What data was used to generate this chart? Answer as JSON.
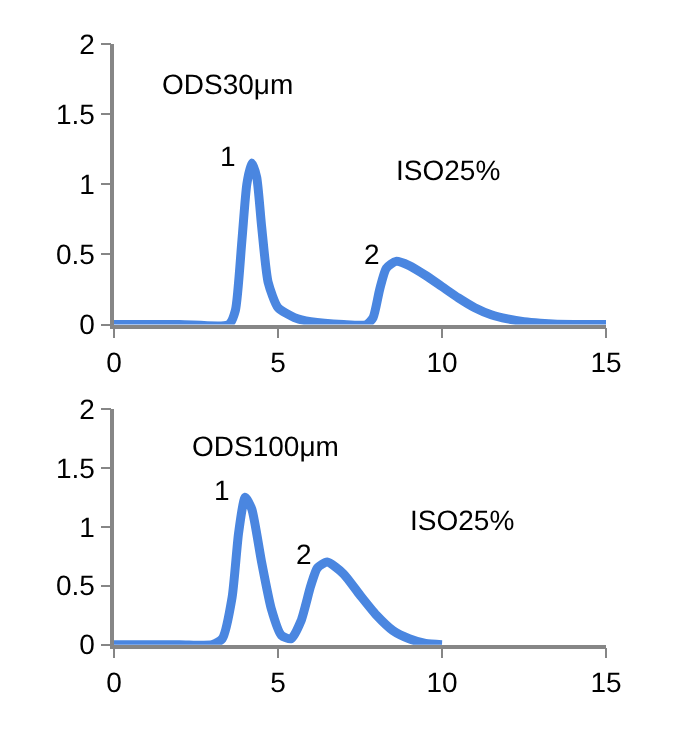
{
  "chart_data": [
    {
      "type": "line",
      "series": [
        {
          "color": "#4a86e0",
          "x": [
            0,
            2,
            3.5,
            3.7,
            3.9,
            4.05,
            4.2,
            4.35,
            4.5,
            4.7,
            5,
            5.5,
            6,
            7,
            7.7,
            7.9,
            8.1,
            8.3,
            8.6,
            9,
            9.5,
            10,
            10.5,
            11,
            11.5,
            12,
            12.5,
            13,
            14,
            15
          ],
          "values": [
            0,
            0,
            0,
            0.1,
            0.6,
            1.0,
            1.15,
            1.05,
            0.7,
            0.3,
            0.12,
            0.05,
            0.02,
            0,
            0,
            0.05,
            0.25,
            0.4,
            0.45,
            0.42,
            0.35,
            0.27,
            0.19,
            0.12,
            0.07,
            0.04,
            0.02,
            0.01,
            0,
            0
          ]
        }
      ],
      "annotations": [
        "ODS30μm",
        "ISO25%",
        {
          "text": "1",
          "x": 4.2,
          "y": 1.15
        },
        {
          "text": "2",
          "x": 8.6,
          "y": 0.45
        }
      ],
      "xlim": [
        0,
        15
      ],
      "xticks": [
        0,
        5,
        10,
        15
      ],
      "ylim": [
        0,
        2
      ],
      "yticks": [
        0,
        0.5,
        1,
        1.5,
        2
      ],
      "marker": "none",
      "line_style": "solid"
    },
    {
      "type": "line",
      "series": [
        {
          "color": "#4a86e0",
          "x": [
            0,
            2,
            3,
            3.3,
            3.6,
            3.8,
            4.0,
            4.2,
            4.5,
            4.8,
            5.1,
            5.4,
            5.7,
            6.0,
            6.2,
            6.5,
            7,
            7.5,
            8,
            8.5,
            9,
            9.5,
            10
          ],
          "values": [
            0,
            0,
            0,
            0.05,
            0.4,
            0.95,
            1.25,
            1.15,
            0.7,
            0.3,
            0.08,
            0.05,
            0.2,
            0.5,
            0.65,
            0.7,
            0.6,
            0.42,
            0.25,
            0.12,
            0.05,
            0.01,
            0
          ]
        }
      ],
      "annotations": [
        "ODS100μm",
        "ISO25%",
        {
          "text": "1",
          "x": 4.0,
          "y": 1.25
        },
        {
          "text": "2",
          "x": 6.5,
          "y": 0.7
        }
      ],
      "xlim": [
        0,
        15
      ],
      "xticks": [
        0,
        5,
        10,
        15
      ],
      "ylim": [
        0,
        2
      ],
      "yticks": [
        0,
        0.5,
        1,
        1.5,
        2
      ],
      "marker": "none",
      "line_style": "solid"
    }
  ]
}
